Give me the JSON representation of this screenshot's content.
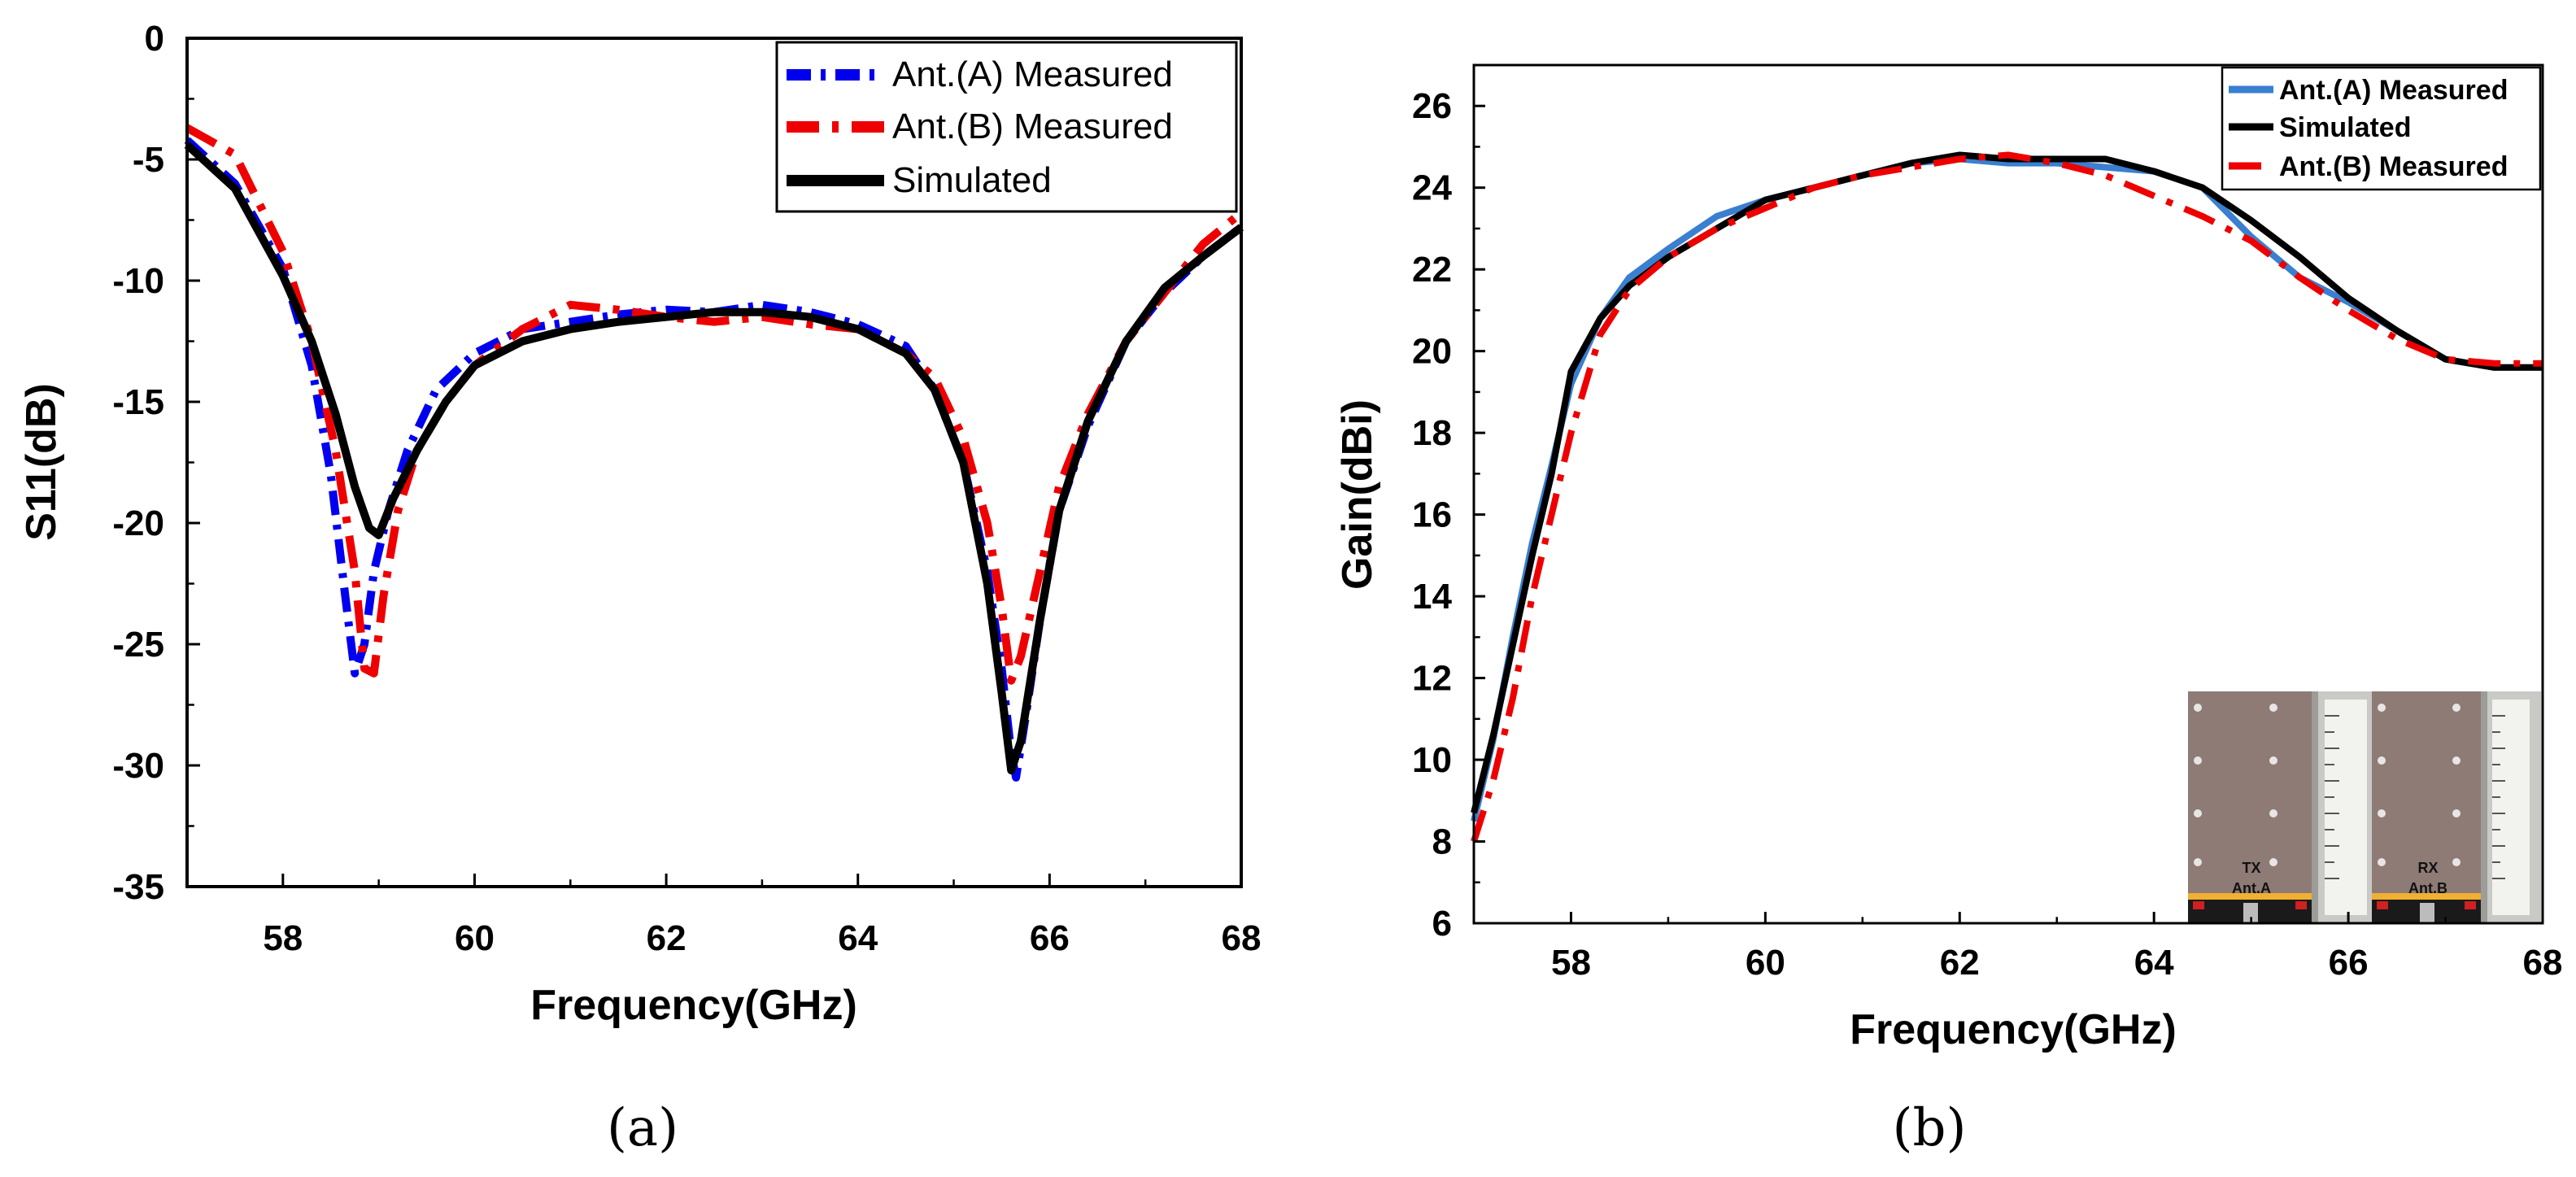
{
  "chart_data": [
    {
      "type": "line",
      "panel_label": "(a)",
      "xlabel": "Frequency(GHz)",
      "ylabel": "S11(dB)",
      "xlim": [
        57,
        68
      ],
      "ylim": [
        -35,
        0
      ],
      "xticks": [
        58,
        60,
        62,
        64,
        66,
        68
      ],
      "yticks": [
        0,
        -5,
        -10,
        -15,
        -20,
        -25,
        -30,
        -35
      ],
      "grid": false,
      "legend_position": "top-right",
      "series": [
        {
          "name": "Ant.(A) Measured",
          "color": "#0000ee",
          "dash": "dash-dot",
          "points": [
            [
              57,
              -4.2
            ],
            [
              57.5,
              -6
            ],
            [
              58,
              -9.5
            ],
            [
              58.3,
              -13.5
            ],
            [
              58.5,
              -18
            ],
            [
              58.65,
              -23
            ],
            [
              58.75,
              -26.2
            ],
            [
              58.85,
              -25
            ],
            [
              58.95,
              -22
            ],
            [
              59.1,
              -19.5
            ],
            [
              59.3,
              -17
            ],
            [
              59.6,
              -14.5
            ],
            [
              60,
              -13
            ],
            [
              60.5,
              -12
            ],
            [
              61,
              -11.7
            ],
            [
              61.5,
              -11.4
            ],
            [
              62,
              -11.2
            ],
            [
              62.5,
              -11.3
            ],
            [
              63,
              -11
            ],
            [
              63.5,
              -11.3
            ],
            [
              64,
              -11.8
            ],
            [
              64.5,
              -12.7
            ],
            [
              64.8,
              -14.5
            ],
            [
              65.1,
              -17.5
            ],
            [
              65.35,
              -22
            ],
            [
              65.5,
              -26
            ],
            [
              65.6,
              -29.5
            ],
            [
              65.65,
              -30.5
            ],
            [
              65.75,
              -28
            ],
            [
              65.9,
              -24
            ],
            [
              66.1,
              -19.5
            ],
            [
              66.4,
              -16
            ],
            [
              66.8,
              -12.5
            ],
            [
              67.2,
              -10.5
            ],
            [
              67.6,
              -9
            ],
            [
              68,
              -7.8
            ]
          ]
        },
        {
          "name": "Ant.(B) Measured",
          "color": "#ee0000",
          "dash": "long-dash-dot",
          "points": [
            [
              57,
              -3.7
            ],
            [
              57.5,
              -4.8
            ],
            [
              58,
              -8.8
            ],
            [
              58.3,
              -12.5
            ],
            [
              58.55,
              -17
            ],
            [
              58.75,
              -22
            ],
            [
              58.85,
              -26
            ],
            [
              58.95,
              -26.2
            ],
            [
              59.05,
              -23
            ],
            [
              59.2,
              -19.5
            ],
            [
              59.4,
              -17
            ],
            [
              59.7,
              -15
            ],
            [
              60,
              -13.5
            ],
            [
              60.5,
              -12
            ],
            [
              61,
              -11
            ],
            [
              61.5,
              -11.2
            ],
            [
              62,
              -11.5
            ],
            [
              62.5,
              -11.7
            ],
            [
              63,
              -11.5
            ],
            [
              63.5,
              -11.8
            ],
            [
              64,
              -12
            ],
            [
              64.5,
              -13
            ],
            [
              64.8,
              -14
            ],
            [
              65.1,
              -16.5
            ],
            [
              65.35,
              -20
            ],
            [
              65.5,
              -23.5
            ],
            [
              65.6,
              -26.5
            ],
            [
              65.7,
              -25.5
            ],
            [
              65.9,
              -22
            ],
            [
              66.1,
              -18.5
            ],
            [
              66.4,
              -15.5
            ],
            [
              66.8,
              -12.5
            ],
            [
              67.2,
              -10.5
            ],
            [
              67.6,
              -8.5
            ],
            [
              68,
              -7.2
            ]
          ]
        },
        {
          "name": "Simulated",
          "color": "#000000",
          "dash": "solid",
          "points": [
            [
              57,
              -4.4
            ],
            [
              57.5,
              -6.2
            ],
            [
              58,
              -9.8
            ],
            [
              58.3,
              -12.5
            ],
            [
              58.55,
              -15.5
            ],
            [
              58.75,
              -18.5
            ],
            [
              58.9,
              -20.2
            ],
            [
              59,
              -20.5
            ],
            [
              59.15,
              -19
            ],
            [
              59.4,
              -17
            ],
            [
              59.7,
              -15
            ],
            [
              60,
              -13.5
            ],
            [
              60.5,
              -12.5
            ],
            [
              61,
              -12
            ],
            [
              61.5,
              -11.7
            ],
            [
              62,
              -11.5
            ],
            [
              62.5,
              -11.3
            ],
            [
              63,
              -11.3
            ],
            [
              63.5,
              -11.5
            ],
            [
              64,
              -12
            ],
            [
              64.5,
              -13
            ],
            [
              64.8,
              -14.5
            ],
            [
              65.1,
              -17.5
            ],
            [
              65.35,
              -22.5
            ],
            [
              65.5,
              -27
            ],
            [
              65.6,
              -30.2
            ],
            [
              65.7,
              -29
            ],
            [
              65.9,
              -24
            ],
            [
              66.1,
              -19.5
            ],
            [
              66.4,
              -15.8
            ],
            [
              66.8,
              -12.5
            ],
            [
              67.2,
              -10.3
            ],
            [
              67.6,
              -9
            ],
            [
              68,
              -7.8
            ]
          ]
        }
      ]
    },
    {
      "type": "line",
      "panel_label": "(b)",
      "xlabel": "Frequency(GHz)",
      "ylabel": "Gain(dBi)",
      "xlim": [
        57,
        68
      ],
      "ylim": [
        6,
        27
      ],
      "xticks": [
        58,
        60,
        62,
        64,
        66,
        68
      ],
      "yticks": [
        6,
        8,
        10,
        12,
        14,
        16,
        18,
        20,
        22,
        24,
        26
      ],
      "grid": false,
      "legend_position": "top-right",
      "series": [
        {
          "name": "Ant.(A) Measured",
          "color": "#3a7fd0",
          "dash": "solid",
          "points": [
            [
              57,
              8.5
            ],
            [
              57.2,
              10.5
            ],
            [
              57.4,
              13
            ],
            [
              57.6,
              15.3
            ],
            [
              57.8,
              17.2
            ],
            [
              58,
              19.2
            ],
            [
              58.3,
              20.8
            ],
            [
              58.6,
              21.8
            ],
            [
              59,
              22.5
            ],
            [
              59.5,
              23.3
            ],
            [
              60,
              23.7
            ],
            [
              60.5,
              24
            ],
            [
              61,
              24.3
            ],
            [
              61.5,
              24.6
            ],
            [
              62,
              24.7
            ],
            [
              62.5,
              24.6
            ],
            [
              63,
              24.6
            ],
            [
              63.5,
              24.5
            ],
            [
              64,
              24.4
            ],
            [
              64.5,
              24
            ],
            [
              65,
              22.8
            ],
            [
              65.5,
              21.8
            ],
            [
              66,
              21.2
            ],
            [
              66.5,
              20.5
            ],
            [
              67,
              19.8
            ],
            [
              67.5,
              19.6
            ],
            [
              68,
              19.6
            ]
          ]
        },
        {
          "name": "Simulated",
          "color": "#000000",
          "dash": "solid",
          "points": [
            [
              57,
              8.7
            ],
            [
              57.2,
              10.6
            ],
            [
              57.4,
              12.8
            ],
            [
              57.6,
              15
            ],
            [
              57.8,
              17
            ],
            [
              58,
              19.5
            ],
            [
              58.3,
              20.8
            ],
            [
              58.6,
              21.6
            ],
            [
              59,
              22.3
            ],
            [
              59.5,
              23
            ],
            [
              60,
              23.7
            ],
            [
              60.5,
              24
            ],
            [
              61,
              24.3
            ],
            [
              61.5,
              24.6
            ],
            [
              62,
              24.8
            ],
            [
              62.5,
              24.7
            ],
            [
              63,
              24.7
            ],
            [
              63.5,
              24.7
            ],
            [
              64,
              24.4
            ],
            [
              64.5,
              24
            ],
            [
              65,
              23.2
            ],
            [
              65.5,
              22.3
            ],
            [
              66,
              21.3
            ],
            [
              66.5,
              20.5
            ],
            [
              67,
              19.8
            ],
            [
              67.5,
              19.6
            ],
            [
              68,
              19.6
            ]
          ]
        },
        {
          "name": "Ant.(B) Measured",
          "color": "#ee0000",
          "dash": "long-dash-dot",
          "points": [
            [
              57,
              8
            ],
            [
              57.2,
              9.5
            ],
            [
              57.4,
              11.5
            ],
            [
              57.6,
              14
            ],
            [
              57.8,
              16
            ],
            [
              58,
              18
            ],
            [
              58.3,
              20.4
            ],
            [
              58.6,
              21.5
            ],
            [
              59,
              22.3
            ],
            [
              59.5,
              23
            ],
            [
              60,
              23.5
            ],
            [
              60.5,
              24
            ],
            [
              61,
              24.3
            ],
            [
              61.5,
              24.5
            ],
            [
              62,
              24.7
            ],
            [
              62.5,
              24.8
            ],
            [
              63,
              24.6
            ],
            [
              63.5,
              24.3
            ],
            [
              64,
              23.8
            ],
            [
              64.5,
              23.3
            ],
            [
              65,
              22.7
            ],
            [
              65.5,
              21.8
            ],
            [
              66,
              21
            ],
            [
              66.5,
              20.3
            ],
            [
              67,
              19.8
            ],
            [
              67.5,
              19.7
            ],
            [
              68,
              19.7
            ]
          ]
        }
      ],
      "inset_labels": [
        {
          "line1": "TX",
          "line2": "Ant.A"
        },
        {
          "line1": "RX",
          "line2": "Ant.B"
        }
      ]
    }
  ]
}
